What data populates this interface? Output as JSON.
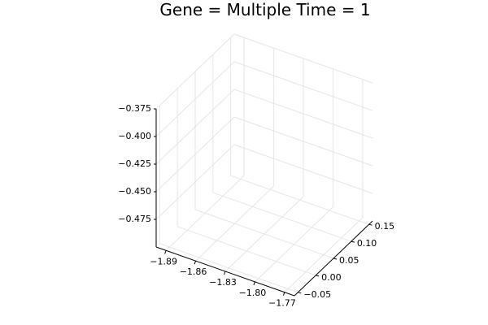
{
  "chart_data": {
    "type": "scatter",
    "title": "Gene = Multiple Time = 1",
    "xlabel": "",
    "ylabel": "",
    "zlabel": "",
    "projection": "3d",
    "grid": true,
    "x_axis": {
      "range": [
        -1.9,
        -1.76
      ],
      "ticks": [
        -1.89,
        -1.86,
        -1.83,
        -1.8,
        -1.77
      ],
      "tick_labels": [
        "−1.89",
        "−1.86",
        "−1.83",
        "−1.80",
        "−1.77"
      ]
    },
    "y_axis": {
      "range": [
        -0.06,
        0.16
      ],
      "ticks": [
        -0.05,
        0.0,
        0.05,
        0.1,
        0.15
      ],
      "tick_labels": [
        "−0.05",
        "0.00",
        "0.05",
        "0.10",
        "0.15"
      ]
    },
    "z_axis": {
      "range": [
        -0.5,
        -0.375
      ],
      "ticks": [
        -0.475,
        -0.45,
        -0.425,
        -0.4,
        -0.375
      ],
      "tick_labels": [
        "−0.475",
        "−0.450",
        "−0.425",
        "−0.400",
        "−0.375"
      ]
    },
    "series": []
  }
}
